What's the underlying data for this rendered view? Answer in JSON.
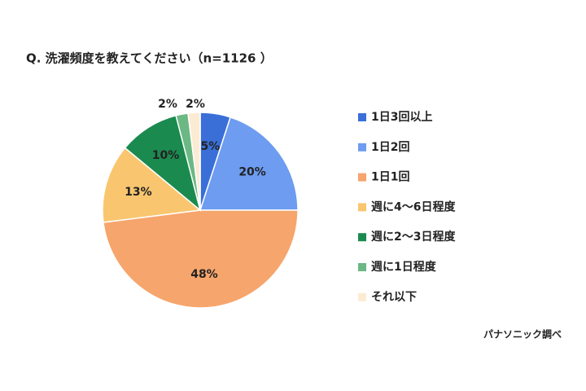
{
  "chart_data": {
    "type": "pie",
    "title": "Q. 洗濯頻度を教えてください（n=1126 ）",
    "categories": [
      "1日3回以上",
      "1日2回",
      "1日1回",
      "週に4〜6日程度",
      "週に2〜3日程度",
      "週に1日程度",
      "それ以下"
    ],
    "values": [
      5,
      20,
      48,
      13,
      10,
      2,
      2
    ],
    "value_labels": [
      "5%",
      "20%",
      "48%",
      "13%",
      "10%",
      "2%",
      "2%"
    ],
    "colors": [
      "#3a6fd8",
      "#6d9cf0",
      "#f6a56c",
      "#f9c66f",
      "#1b8a4f",
      "#6bb884",
      "#fcebd3"
    ],
    "source": "パナソニック調べ"
  }
}
